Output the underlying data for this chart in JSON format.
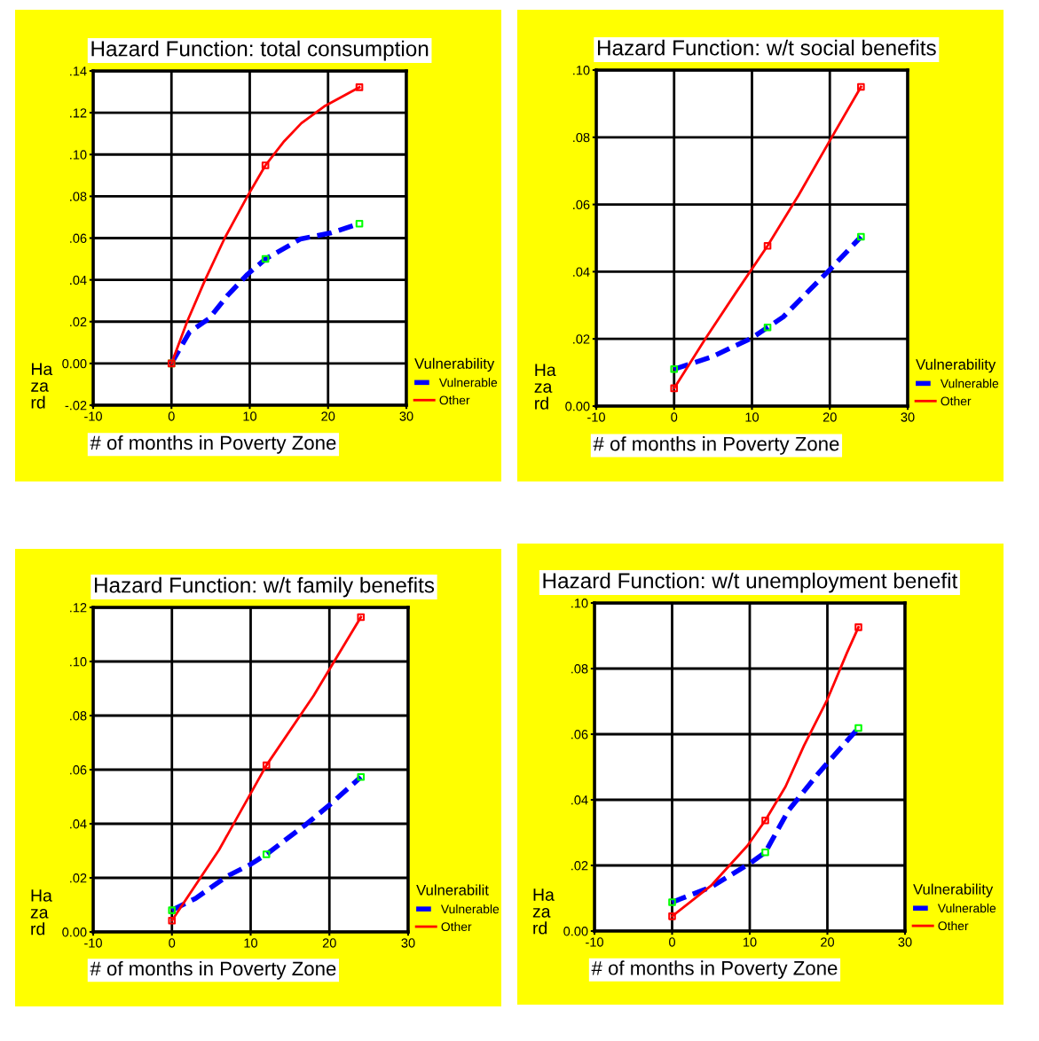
{
  "chart_data": [
    {
      "type": "line",
      "title": "Hazard Function: total consumption",
      "xlabel": "# of months in Poverty Zone",
      "ylabel": "Ha\nza\nrd",
      "legend_title": "Vulnerability",
      "legend": "right",
      "grid": true,
      "xlim": [
        -10,
        30
      ],
      "xticks": [
        -10,
        0,
        10,
        20,
        30
      ],
      "ylim": [
        -0.02,
        0.14
      ],
      "yticks": [
        {
          "value": -0.02,
          "label": "-.02"
        },
        {
          "value": 0,
          "label": "0.00"
        },
        {
          "value": 0.02,
          "label": ".02"
        },
        {
          "value": 0.04,
          "label": ".04"
        },
        {
          "value": 0.06,
          "label": ".06"
        },
        {
          "value": 0.08,
          "label": ".08"
        },
        {
          "value": 0.1,
          "label": ".10"
        },
        {
          "value": 0.12,
          "label": ".12"
        },
        {
          "value": 0.14,
          "label": ".14"
        }
      ],
      "series": [
        {
          "name": "Vulnerable",
          "color": "#0000ff",
          "line_style": "dashed",
          "marker": "none",
          "x": [
            0,
            2.3,
            4.8,
            7.2,
            9.7,
            12,
            16.5,
            20.3,
            24
          ],
          "values": [
            0,
            0.015,
            0.0215,
            0.0327,
            0.0426,
            0.05,
            0.0596,
            0.0624,
            0.0669
          ]
        },
        {
          "type": "scatter",
          "color": "#00ff00",
          "marker": "square",
          "x": [
            0,
            12,
            24
          ],
          "values": [
            0,
            0.05,
            0.0669
          ]
        },
        {
          "name": "Other",
          "color": "#ff0000",
          "line_style": "solid",
          "marker": "none",
          "x": [
            0,
            2,
            4.3,
            6.8,
            9.7,
            12,
            14.4,
            16.6,
            19.5,
            24
          ],
          "values": [
            0,
            0.02,
            0.04,
            0.06,
            0.08,
            0.0948,
            0.1064,
            0.115,
            0.123,
            0.1322
          ]
        },
        {
          "type": "scatter",
          "color": "#ff0000",
          "marker": "square",
          "x": [
            0,
            12,
            24
          ],
          "values": [
            0,
            0.0948,
            0.1322
          ]
        }
      ]
    },
    {
      "type": "line",
      "title": "Hazard Function: w/t social benefits",
      "xlabel": "# of months in Poverty Zone",
      "ylabel": "Ha\nza\nrd",
      "legend_title": "Vulnerability",
      "legend": "right",
      "grid": true,
      "xlim": [
        -10,
        30
      ],
      "xticks": [
        -10,
        0,
        10,
        20,
        30
      ],
      "ylim": [
        0,
        0.1
      ],
      "yticks": [
        {
          "value": 0,
          "label": "0.00"
        },
        {
          "value": 0.02,
          "label": ".02"
        },
        {
          "value": 0.04,
          "label": ".04"
        },
        {
          "value": 0.06,
          "label": ".06"
        },
        {
          "value": 0.08,
          "label": ".08"
        },
        {
          "value": 0.1,
          "label": ".10"
        }
      ],
      "series": [
        {
          "name": "Vulnerable",
          "color": "#0000ff",
          "line_style": "dashed",
          "marker": "none",
          "x": [
            0,
            4.8,
            10,
            12,
            14,
            17,
            20,
            24
          ],
          "values": [
            0.011,
            0.0146,
            0.0203,
            0.0234,
            0.0265,
            0.0336,
            0.0406,
            0.0504
          ]
        },
        {
          "type": "scatter",
          "color": "#00ff00",
          "marker": "square",
          "x": [
            0,
            12,
            24
          ],
          "values": [
            0.011,
            0.0234,
            0.0504
          ]
        },
        {
          "name": "Other",
          "color": "#ff0000",
          "line_style": "solid",
          "marker": "none",
          "x": [
            0,
            4,
            8,
            12,
            16,
            20,
            24
          ],
          "values": [
            0.0053,
            0.02,
            0.034,
            0.0477,
            0.0628,
            0.079,
            0.095
          ]
        },
        {
          "type": "scatter",
          "color": "#ff0000",
          "marker": "square",
          "x": [
            0,
            12,
            24
          ],
          "values": [
            0.0053,
            0.0477,
            0.095
          ]
        }
      ]
    },
    {
      "type": "line",
      "title": "Hazard Function: w/t family benefits",
      "xlabel": "# of months in Poverty Zone",
      "ylabel": "Ha\nza\nrd",
      "legend_title": "Vulnerabilit",
      "legend": "right",
      "grid": true,
      "xlim": [
        -10,
        30
      ],
      "xticks": [
        -10,
        0,
        10,
        20,
        30
      ],
      "ylim": [
        0,
        0.12
      ],
      "yticks": [
        {
          "value": 0,
          "label": "0.00"
        },
        {
          "value": 0.02,
          "label": ".02"
        },
        {
          "value": 0.04,
          "label": ".04"
        },
        {
          "value": 0.06,
          "label": ".06"
        },
        {
          "value": 0.08,
          "label": ".08"
        },
        {
          "value": 0.1,
          "label": ".10"
        },
        {
          "value": 0.12,
          "label": ".12"
        }
      ],
      "series": [
        {
          "name": "Vulnerable",
          "color": "#0000ff",
          "line_style": "dashed",
          "marker": "none",
          "x": [
            0,
            3,
            7,
            10,
            12,
            17,
            20,
            24
          ],
          "values": [
            0.008,
            0.0124,
            0.0206,
            0.025,
            0.0287,
            0.0397,
            0.0469,
            0.0573
          ]
        },
        {
          "type": "scatter",
          "color": "#00ff00",
          "marker": "square",
          "x": [
            0,
            12,
            24
          ],
          "values": [
            0.008,
            0.0287,
            0.0573
          ]
        },
        {
          "name": "Other",
          "color": "#ff0000",
          "line_style": "solid",
          "marker": "none",
          "x": [
            0,
            6,
            12,
            18,
            24
          ],
          "values": [
            0.0042,
            0.0304,
            0.0616,
            0.0874,
            0.1164
          ]
        },
        {
          "type": "scatter",
          "color": "#ff0000",
          "marker": "square",
          "x": [
            0,
            12,
            24
          ],
          "values": [
            0.0042,
            0.0616,
            0.1164
          ]
        }
      ]
    },
    {
      "type": "line",
      "title": "Hazard Function: w/t unemployment benefit",
      "xlabel": "# of months in Poverty Zone",
      "ylabel": "Ha\nza\nrd",
      "legend_title": "Vulnerability",
      "legend": "right",
      "grid": true,
      "xlim": [
        -10,
        30
      ],
      "xticks": [
        -10,
        0,
        10,
        20,
        30
      ],
      "ylim": [
        0,
        0.1
      ],
      "yticks": [
        {
          "value": 0,
          "label": "0.00"
        },
        {
          "value": 0.02,
          "label": ".02"
        },
        {
          "value": 0.04,
          "label": ".04"
        },
        {
          "value": 0.06,
          "label": ".06"
        },
        {
          "value": 0.08,
          "label": ".08"
        },
        {
          "value": 0.1,
          "label": ".10"
        }
      ],
      "series": [
        {
          "name": "Vulnerable",
          "color": "#0000ff",
          "line_style": "dashed",
          "marker": "none",
          "x": [
            0,
            5,
            10,
            12,
            15,
            19,
            24
          ],
          "values": [
            0.0088,
            0.0134,
            0.0206,
            0.024,
            0.0368,
            0.0485,
            0.0619
          ]
        },
        {
          "type": "scatter",
          "color": "#00ff00",
          "marker": "square",
          "x": [
            0,
            12,
            24
          ],
          "values": [
            0.0088,
            0.024,
            0.0619
          ]
        },
        {
          "name": "Other",
          "color": "#ff0000",
          "line_style": "solid",
          "marker": "none",
          "x": [
            0,
            5,
            9.7,
            12,
            14.6,
            17,
            20,
            22.5,
            24
          ],
          "values": [
            0.0045,
            0.0138,
            0.026,
            0.0337,
            0.044,
            0.0566,
            0.0706,
            0.0847,
            0.0926
          ]
        },
        {
          "type": "scatter",
          "color": "#ff0000",
          "marker": "square",
          "x": [
            0,
            12,
            24
          ],
          "values": [
            0.0045,
            0.0337,
            0.0926
          ]
        }
      ]
    }
  ]
}
